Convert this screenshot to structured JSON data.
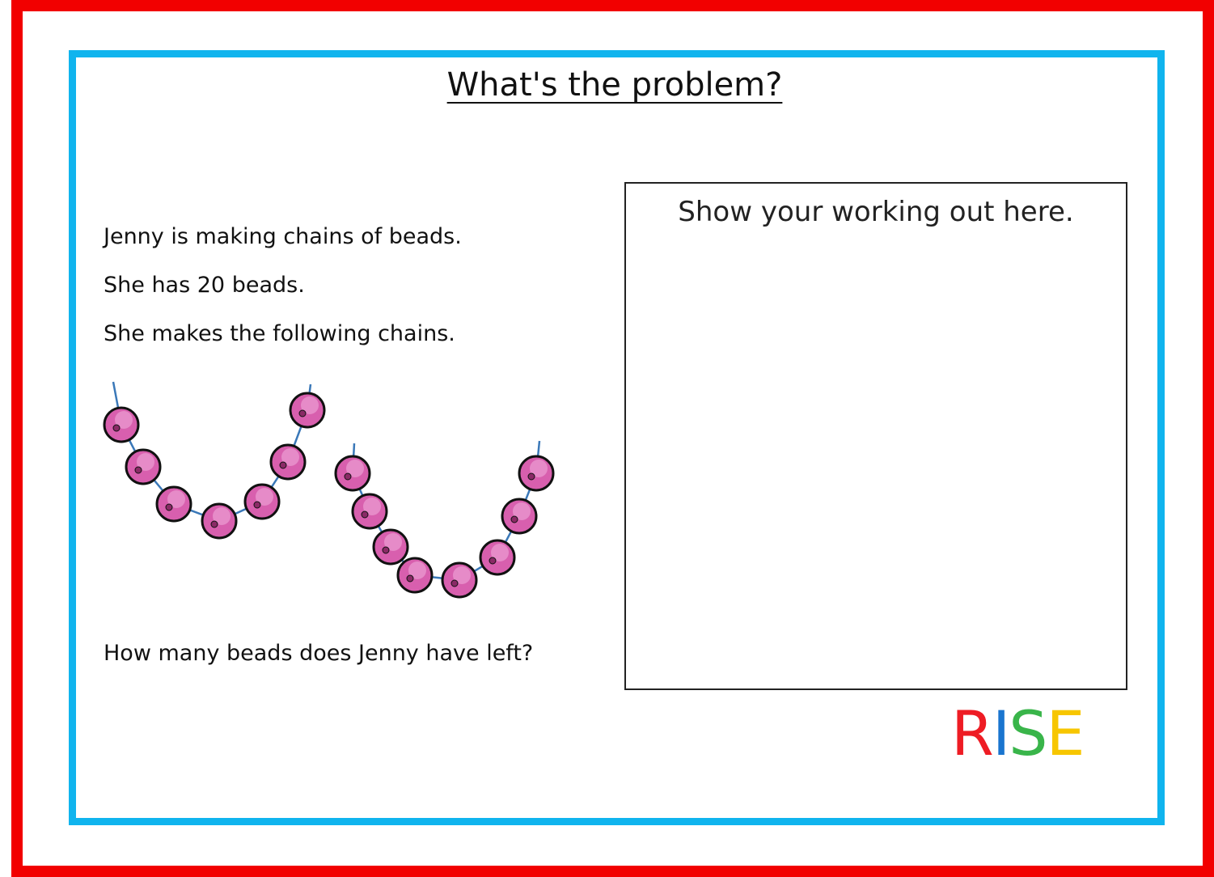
{
  "header": {
    "title": "What's the problem?"
  },
  "problem": {
    "lines": [
      "Jenny is making chains of beads.",
      "She has 20 beads.",
      "She makes the following chains."
    ],
    "question": "How many beads does Jenny have left?"
  },
  "working": {
    "label": "Show your working out here."
  },
  "logo": {
    "letters": [
      "R",
      "I",
      "S",
      "E"
    ]
  }
}
